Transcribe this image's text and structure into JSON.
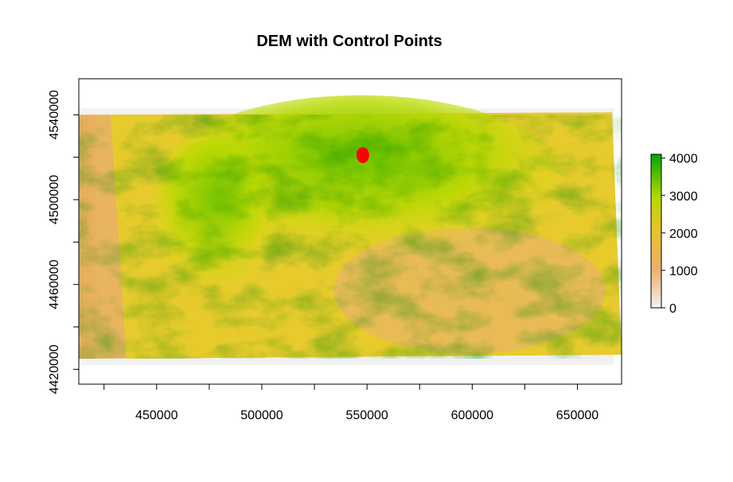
{
  "chart_data": {
    "type": "heatmap",
    "title": "DEM with Control Points",
    "xlabel": "",
    "ylabel": "",
    "xlim": [
      413000,
      671000
    ],
    "ylim": [
      4413000,
      4557000
    ],
    "x_ticks": [
      450000,
      500000,
      550000,
      600000,
      650000
    ],
    "y_ticks": [
      4420000,
      4460000,
      4500000,
      4540000
    ],
    "x_tick_labels": [
      "450000",
      "500000",
      "550000",
      "600000",
      "650000"
    ],
    "y_tick_labels": [
      "4420000",
      "4460000",
      "4500000",
      "4540000"
    ],
    "raster_extent": {
      "x": [
        413000,
        671000
      ],
      "y": [
        4425000,
        4540000
      ]
    },
    "colorbar": {
      "range": [
        0,
        4100
      ],
      "ticks": [
        0,
        1000,
        2000,
        3000,
        4000
      ],
      "tick_labels": [
        "0",
        "1000",
        "2000",
        "3000",
        "4000"
      ],
      "colors": [
        "#f2f2f2",
        "#ebb25e",
        "#f2f200",
        "#00a600"
      ],
      "placement": "right"
    },
    "control_points": [
      {
        "x": 548000,
        "y": 4521000,
        "color": "#ff0000"
      }
    ],
    "grid": false
  }
}
